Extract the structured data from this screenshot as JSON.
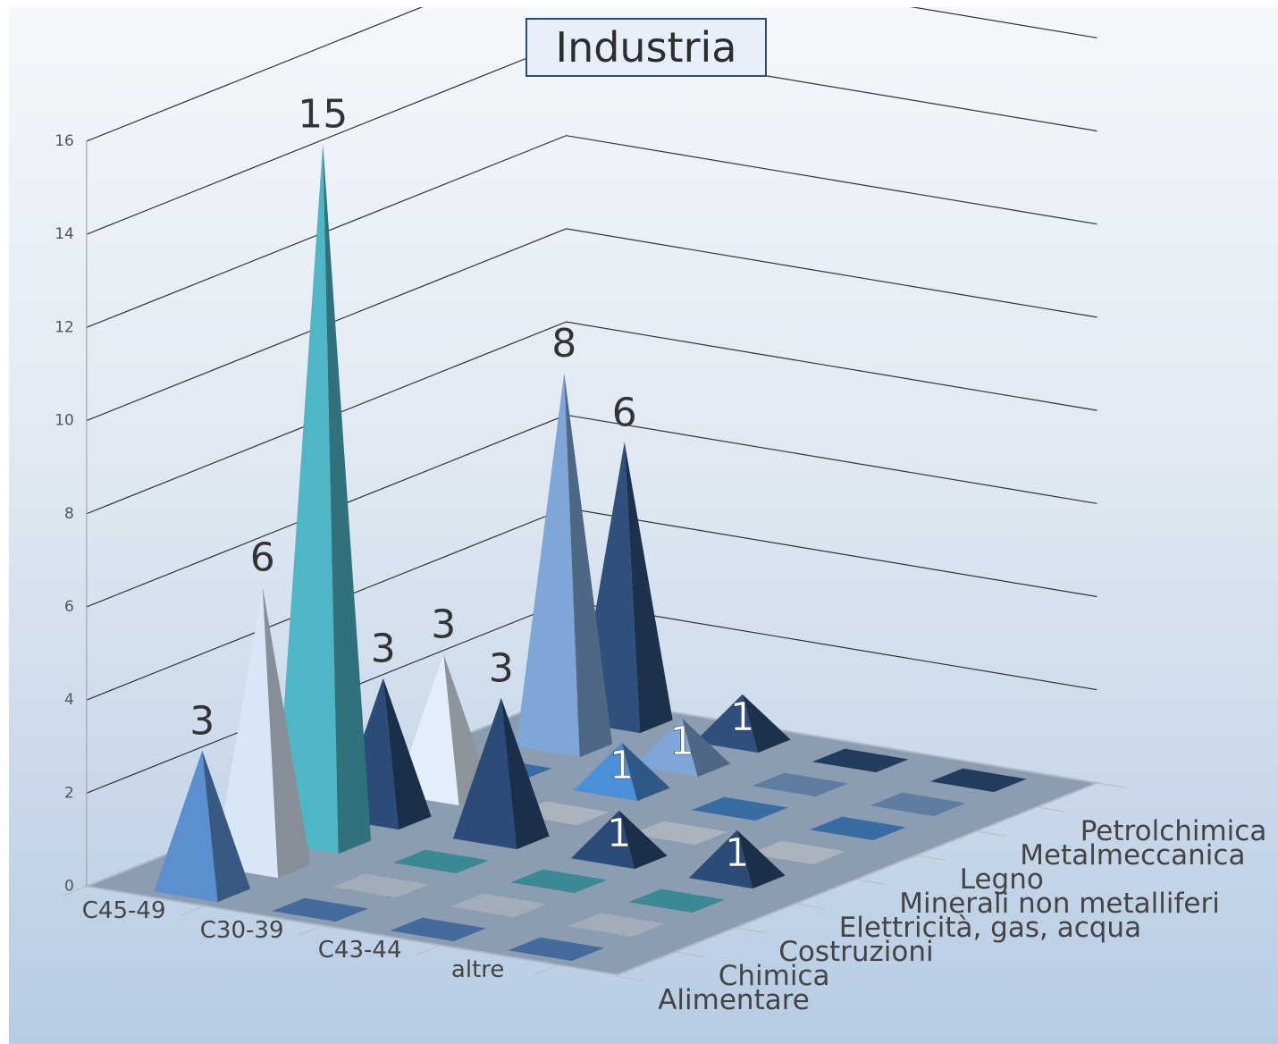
{
  "chart_data": {
    "type": "bar",
    "style": "3d-pyramid",
    "title": "Industria",
    "categories": [
      "C45-49",
      "C30-39",
      "C43-44",
      "altre"
    ],
    "series": [
      {
        "name": "Alimentare",
        "values": [
          3,
          0,
          0,
          0
        ]
      },
      {
        "name": "Chimica",
        "values": [
          6,
          0,
          0,
          0
        ]
      },
      {
        "name": "Costruzioni",
        "values": [
          15,
          0,
          0,
          0
        ]
      },
      {
        "name": "Elettricità, gas, acqua",
        "values": [
          3,
          3,
          1,
          1
        ]
      },
      {
        "name": "Minerali non metalliferi",
        "values": [
          3,
          0,
          0,
          0
        ]
      },
      {
        "name": "Legno",
        "values": [
          0,
          1,
          0,
          0
        ]
      },
      {
        "name": "Metalmeccanica",
        "values": [
          8,
          1,
          0,
          0
        ]
      },
      {
        "name": "Petrolchimica",
        "values": [
          6,
          1,
          0,
          0
        ]
      }
    ],
    "yticks": [
      "0",
      "2",
      "4",
      "6",
      "8",
      "10",
      "12",
      "14",
      "16"
    ],
    "ylim": [
      0,
      16
    ],
    "grid": true,
    "colors": [
      "#5b8fd0",
      "#d8e6f7",
      "#4fb6c6",
      "#2b4c78",
      "#e4eefb",
      "#4a90d8",
      "#7ea6d6",
      "#2f4f7c"
    ]
  }
}
